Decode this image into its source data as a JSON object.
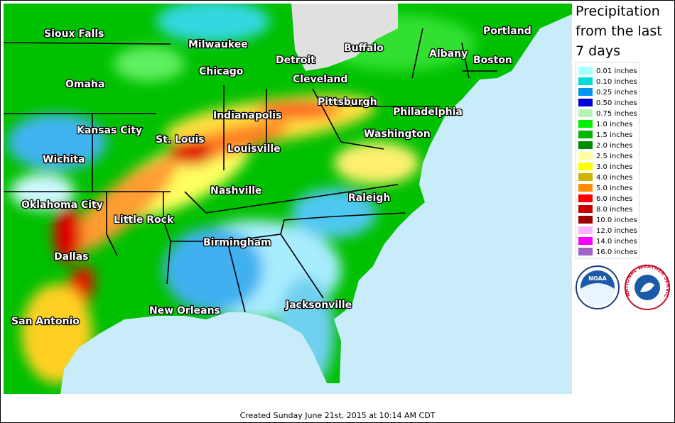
{
  "title": "Precipitation from the last 7 days",
  "legend": [
    {
      "label": "0.01 inches",
      "color": "#a8ffff"
    },
    {
      "label": "0.10 inches",
      "color": "#00dcdc"
    },
    {
      "label": "0.25 inches",
      "color": "#0096f0"
    },
    {
      "label": "0.50 inches",
      "color": "#0000dc"
    },
    {
      "label": "0.75 inches",
      "color": "#b4f5b4"
    },
    {
      "label": "1.0 inches",
      "color": "#00f000"
    },
    {
      "label": "1.5 inches",
      "color": "#00b800"
    },
    {
      "label": "2.0 inches",
      "color": "#008c00"
    },
    {
      "label": "2.5 inches",
      "color": "#ffffa0"
    },
    {
      "label": "3.0 inches",
      "color": "#ffff00"
    },
    {
      "label": "4.0 inches",
      "color": "#d2b400"
    },
    {
      "label": "5.0 inches",
      "color": "#ff8c00"
    },
    {
      "label": "6.0 inches",
      "color": "#ff0000"
    },
    {
      "label": "8.0 inches",
      "color": "#c80000"
    },
    {
      "label": "10.0 inches",
      "color": "#a00000"
    },
    {
      "label": "12.0 inches",
      "color": "#ffb4ff"
    },
    {
      "label": "14.0 inches",
      "color": "#ff00ff"
    },
    {
      "label": "16.0 inches",
      "color": "#a064c8"
    }
  ],
  "cities": [
    "Sioux Falls",
    "Milwaukee",
    "Detroit",
    "Buffalo",
    "Albany",
    "Portland",
    "Boston",
    "Chicago",
    "Cleveland",
    "Omaha",
    "Pittsburgh",
    "Philadelphia",
    "Indianapolis",
    "Kansas City",
    "St. Louis",
    "Washington",
    "Louisville",
    "Wichita",
    "Nashville",
    "Raleigh",
    "Oklahoma City",
    "Little Rock",
    "Birmingham",
    "Dallas",
    "New Orleans",
    "Jacksonville",
    "San Antonio"
  ],
  "logos": {
    "noaa": "NOAA",
    "nws": "NATIONAL WEATHER SERVICE"
  },
  "footer": "Created Sunday June 21st, 2015 at 10:14 AM CDT"
}
